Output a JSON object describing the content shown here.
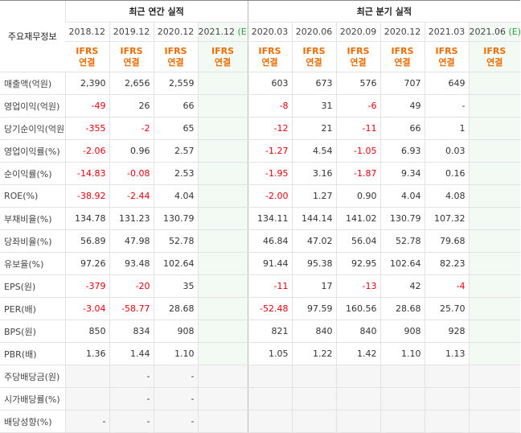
{
  "table": {
    "corner_label": "주요재무정보",
    "group_annual": "최근 연간 실적",
    "group_quarterly": "최근 분기 실적",
    "ifrs_line1": "IFRS",
    "ifrs_line2": "연결",
    "estimate_mark": "(E)",
    "columns": [
      {
        "period": "2018.12",
        "estimate": false
      },
      {
        "period": "2019.12",
        "estimate": false
      },
      {
        "period": "2020.12",
        "estimate": false
      },
      {
        "period": "2021.12",
        "estimate": true
      },
      {
        "period": "2020.03",
        "estimate": false
      },
      {
        "period": "2020.06",
        "estimate": false
      },
      {
        "period": "2020.09",
        "estimate": false
      },
      {
        "period": "2020.12",
        "estimate": false
      },
      {
        "period": "2021.03",
        "estimate": false
      },
      {
        "period": "2021.06",
        "estimate": true
      }
    ],
    "rows": [
      {
        "label": "매출액(억원)",
        "values": [
          "2,390",
          "2,656",
          "2,559",
          "",
          "603",
          "673",
          "576",
          "707",
          "649",
          ""
        ]
      },
      {
        "label": "영업이익(억원)",
        "values": [
          "-49",
          "26",
          "66",
          "",
          "-8",
          "31",
          "-6",
          "49",
          "-",
          ""
        ]
      },
      {
        "label": "당기순이익(억원)",
        "values": [
          "-355",
          "-2",
          "65",
          "",
          "-12",
          "21",
          "-11",
          "66",
          "1",
          ""
        ]
      },
      {
        "label": "영업이익률(%)",
        "values": [
          "-2.06",
          "0.96",
          "2.57",
          "",
          "-1.27",
          "4.54",
          "-1.05",
          "6.93",
          "0.03",
          ""
        ]
      },
      {
        "label": "순이익률(%)",
        "values": [
          "-14.83",
          "-0.08",
          "2.53",
          "",
          "-1.95",
          "3.16",
          "-1.87",
          "9.34",
          "0.16",
          ""
        ]
      },
      {
        "label": "ROE(%)",
        "values": [
          "-38.92",
          "-2.44",
          "4.04",
          "",
          "-2.00",
          "1.27",
          "0.90",
          "4.04",
          "4.08",
          ""
        ]
      },
      {
        "label": "부채비율(%)",
        "values": [
          "134.78",
          "131.23",
          "130.79",
          "",
          "134.11",
          "144.14",
          "141.02",
          "130.79",
          "107.32",
          ""
        ]
      },
      {
        "label": "당좌비율(%)",
        "values": [
          "56.89",
          "47.98",
          "52.78",
          "",
          "46.84",
          "47.02",
          "56.04",
          "52.78",
          "79.68",
          ""
        ]
      },
      {
        "label": "유보율(%)",
        "values": [
          "97.26",
          "93.48",
          "102.64",
          "",
          "91.44",
          "95.38",
          "92.95",
          "102.64",
          "82.23",
          ""
        ]
      },
      {
        "label": "EPS(원)",
        "values": [
          "-379",
          "-20",
          "35",
          "",
          "-11",
          "17",
          "-13",
          "42",
          "-4",
          ""
        ]
      },
      {
        "label": "PER(배)",
        "values": [
          "-3.04",
          "-58.77",
          "28.68",
          "",
          "-52.48",
          "97.59",
          "160.56",
          "28.68",
          "25.70",
          ""
        ]
      },
      {
        "label": "BPS(원)",
        "values": [
          "850",
          "834",
          "908",
          "",
          "821",
          "840",
          "840",
          "908",
          "928",
          ""
        ]
      },
      {
        "label": "PBR(배)",
        "values": [
          "1.36",
          "1.44",
          "1.10",
          "",
          "1.05",
          "1.22",
          "1.42",
          "1.10",
          "1.13",
          ""
        ]
      },
      {
        "label": "주당배당금(원)",
        "values": [
          "",
          "-",
          "-",
          "",
          "",
          "",
          "",
          "",
          "",
          ""
        ]
      },
      {
        "label": "시가배당률(%)",
        "values": [
          "",
          "-",
          "-",
          "",
          "",
          "",
          "",
          "",
          "",
          ""
        ]
      },
      {
        "label": "배당성향(%)",
        "values": [
          "-",
          "-",
          "-",
          "",
          "",
          "",
          "",
          "",
          "",
          ""
        ]
      }
    ],
    "colors": {
      "negative": "#e8000b",
      "ifrs": "#ef6c00",
      "estimate_bg": "#f3faf3",
      "estimate_mark": "#2e9e3b"
    }
  }
}
